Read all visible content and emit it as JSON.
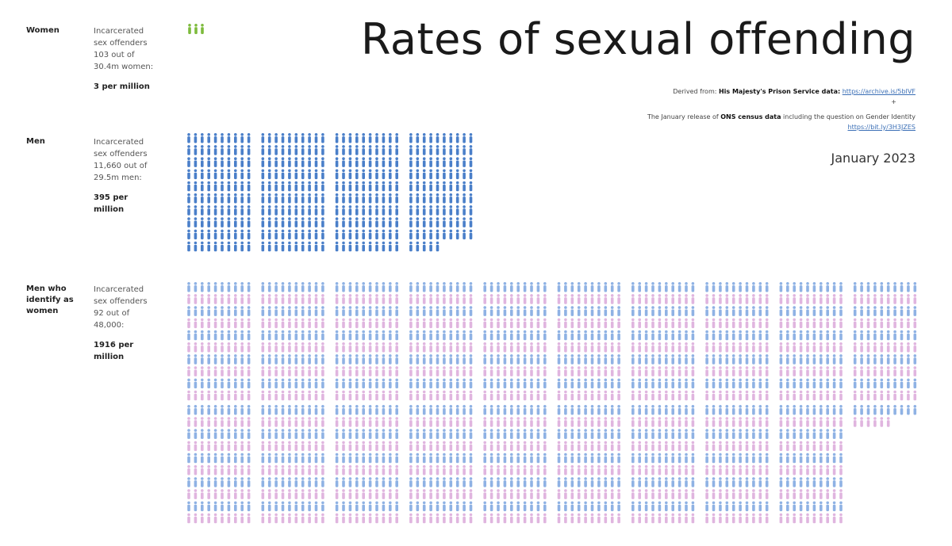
{
  "chart_data": {
    "type": "pictogram",
    "title": "Rates of sexual offending",
    "source_label": "Derived from:",
    "source_name": "His Majesty's Prison Service data:",
    "source_link": "https://archive.is/5bIVF",
    "separator": "+",
    "census_prefix": "The January release of",
    "census_name": "ONS census data",
    "census_suffix": "including the question on Gender Identity",
    "census_link": "https://bit.ly/3H3JZES",
    "date": "January 2023",
    "series": [
      {
        "label": "Women",
        "desc": [
          "Incarcerated",
          "sex offenders",
          "103 out of",
          "30.4m women:"
        ],
        "rate_text": "3 per million",
        "value": 3,
        "color": "#7dbb3c"
      },
      {
        "label": "Men",
        "desc": [
          "Incarcerated",
          "sex offenders",
          "11,660 out of",
          "29.5m men:"
        ],
        "rate_text": "395 per million",
        "value": 395,
        "color": "#4a7fc9"
      },
      {
        "label": "Men who identify as women",
        "desc": [
          "Incarcerated",
          "sex offenders",
          "92 out of",
          "48,000:"
        ],
        "rate_text": "1916 per million",
        "value": 1916,
        "colors": [
          "#8fb2e4",
          "#e0b5df"
        ]
      }
    ]
  }
}
